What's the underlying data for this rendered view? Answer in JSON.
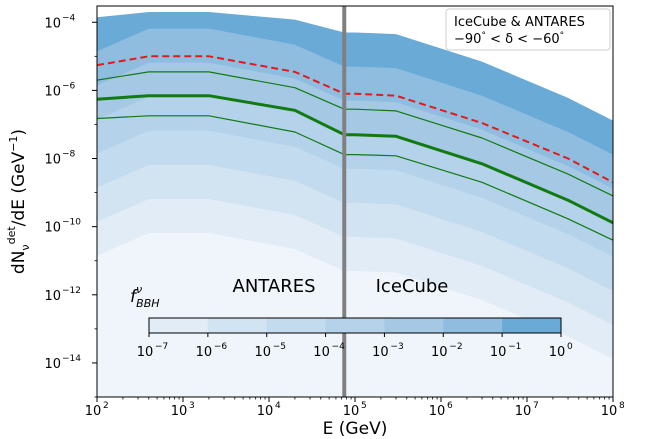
{
  "chart_data": {
    "type": "area",
    "title": "",
    "xlabel": "E (GeV)",
    "ylabel_parts": {
      "d": "dN",
      "sub": "ν",
      "sup": "det",
      "tail": "/dE (GeV",
      "tail_sup": "−1",
      "close": ")"
    },
    "x_scale": "log",
    "y_scale": "log",
    "xlim": [
      100,
      100000000
    ],
    "ylim": [
      1e-15,
      0.0003
    ],
    "x_tick_exponents": [
      2,
      3,
      4,
      5,
      6,
      7,
      8
    ],
    "y_tick_exponents": [
      -4,
      -6,
      -8,
      -10,
      -12,
      -14
    ],
    "tick_base": "10",
    "grid": false,
    "legend": {
      "position": "top-right",
      "line1": "IceCube & ANTARES",
      "line2_parts": [
        "−90",
        "°",
        " < δ < −60",
        "°"
      ]
    },
    "boundary": {
      "x": 75000,
      "color": "#808080"
    },
    "region_labels": {
      "left": "ANTARES",
      "right": "IceCube"
    },
    "colorbar": {
      "label_main": "f",
      "label_sup": "ν",
      "label_sub": "BBH",
      "tick_exponents": [
        -7,
        -6,
        -5,
        -4,
        -3,
        -2,
        -1,
        0
      ],
      "colors": [
        "#f0f5fb",
        "#e1ecf7",
        "#d2e3f2",
        "#c3dbee",
        "#b4d2ea",
        "#a5c9e5",
        "#8fbde0",
        "#6aaad7"
      ]
    },
    "bands": [
      {
        "f_bbh": "1e-7",
        "color": "#f0f5fb",
        "upper": [
          [
            100,
            1.4e-11
          ],
          [
            400,
            6.5e-11
          ],
          [
            2000,
            6.5e-11
          ],
          [
            20000,
            2.2e-11
          ],
          [
            75000,
            5e-12
          ],
          [
            100000,
            5e-12
          ],
          [
            300000,
            4.5e-12
          ],
          [
            3000000,
            7e-13
          ],
          [
            30000000,
            6e-14
          ],
          [
            100000000,
            1.3e-14
          ]
        ]
      },
      {
        "f_bbh": "1e-6",
        "color": "#e1ecf7",
        "upper": [
          [
            100,
            1.4e-10
          ],
          [
            400,
            6.5e-10
          ],
          [
            2000,
            6.5e-10
          ],
          [
            20000,
            2.2e-10
          ],
          [
            75000,
            5e-11
          ],
          [
            100000,
            5e-11
          ],
          [
            300000,
            4.5e-11
          ],
          [
            3000000,
            7e-12
          ],
          [
            30000000,
            6e-13
          ],
          [
            100000000,
            1.3e-13
          ]
        ]
      },
      {
        "f_bbh": "1e-5",
        "color": "#d2e3f2",
        "upper": [
          [
            100,
            1.4e-09
          ],
          [
            400,
            6.5e-09
          ],
          [
            2000,
            6.5e-09
          ],
          [
            20000,
            2.2e-09
          ],
          [
            75000,
            5e-10
          ],
          [
            100000,
            5e-10
          ],
          [
            300000,
            4.5e-10
          ],
          [
            3000000,
            7e-11
          ],
          [
            30000000,
            6e-12
          ],
          [
            100000000,
            1.3e-12
          ]
        ]
      },
      {
        "f_bbh": "1e-4",
        "color": "#c3dbee",
        "upper": [
          [
            100,
            1.4e-08
          ],
          [
            400,
            6.5e-08
          ],
          [
            2000,
            6.5e-08
          ],
          [
            20000,
            2.2e-08
          ],
          [
            75000,
            5e-09
          ],
          [
            100000,
            5e-09
          ],
          [
            300000,
            4.5e-09
          ],
          [
            3000000,
            7e-10
          ],
          [
            30000000,
            6e-11
          ],
          [
            100000000,
            1.3e-11
          ]
        ]
      },
      {
        "f_bbh": "1e-3",
        "color": "#b4d2ea",
        "upper": [
          [
            100,
            1.4e-07
          ],
          [
            400,
            6.5e-07
          ],
          [
            2000,
            6.5e-07
          ],
          [
            20000,
            2.2e-07
          ],
          [
            75000,
            5e-08
          ],
          [
            100000,
            5e-08
          ],
          [
            300000,
            4.5e-08
          ],
          [
            3000000,
            7e-09
          ],
          [
            30000000,
            6e-10
          ],
          [
            100000000,
            1.3e-10
          ]
        ]
      },
      {
        "f_bbh": "1e-2",
        "color": "#a5c9e5",
        "upper": [
          [
            100,
            1.4e-06
          ],
          [
            400,
            6.5e-06
          ],
          [
            2000,
            6.5e-06
          ],
          [
            20000,
            2.2e-06
          ],
          [
            75000,
            5e-07
          ],
          [
            100000,
            5e-07
          ],
          [
            300000,
            4.5e-07
          ],
          [
            3000000,
            7e-08
          ],
          [
            30000000,
            6e-09
          ],
          [
            100000000,
            1.3e-09
          ]
        ]
      },
      {
        "f_bbh": "1e-1",
        "color": "#8fbde0",
        "upper": [
          [
            100,
            1.4e-05
          ],
          [
            400,
            6.5e-05
          ],
          [
            2000,
            6.5e-05
          ],
          [
            20000,
            2.2e-05
          ],
          [
            75000,
            5e-06
          ],
          [
            100000,
            5e-06
          ],
          [
            300000,
            4.5e-06
          ],
          [
            3000000,
            7e-07
          ],
          [
            30000000,
            6e-08
          ],
          [
            100000000,
            1.3e-08
          ]
        ]
      },
      {
        "f_bbh": "1e0",
        "color": "#6aaad7",
        "upper": [
          [
            100,
            0.00014
          ],
          [
            400,
            0.0002
          ],
          [
            2000,
            0.0002
          ],
          [
            20000,
            0.00012
          ],
          [
            75000,
            5e-05
          ],
          [
            100000,
            5e-05
          ],
          [
            300000,
            4.5e-05
          ],
          [
            3000000,
            7e-06
          ],
          [
            30000000,
            6e-07
          ],
          [
            100000000,
            1.3e-07
          ]
        ]
      }
    ],
    "lines": [
      {
        "name": "",
        "style": "dashed",
        "color": "#e31a1c",
        "width": 2,
        "points": [
          [
            100,
            5.5e-06
          ],
          [
            400,
            1e-05
          ],
          [
            2000,
            1e-05
          ],
          [
            20000,
            3.5e-06
          ],
          [
            75000,
            8e-07
          ],
          [
            100000,
            8e-07
          ],
          [
            300000,
            7e-07
          ],
          [
            3000000,
            1.1e-07
          ],
          [
            30000000,
            1e-08
          ],
          [
            100000000,
            2e-09
          ]
        ]
      },
      {
        "name": "",
        "style": "solid",
        "color": "#117a11",
        "width": 1.2,
        "points": [
          [
            100,
            2e-06
          ],
          [
            400,
            3.5e-06
          ],
          [
            2000,
            3.5e-06
          ],
          [
            20000,
            1.2e-06
          ],
          [
            75000,
            2.8e-07
          ],
          [
            100000,
            2.8e-07
          ],
          [
            300000,
            2.5e-07
          ],
          [
            3000000,
            4e-08
          ],
          [
            30000000,
            3.5e-09
          ],
          [
            100000000,
            8e-10
          ]
        ]
      },
      {
        "name": "",
        "style": "solid",
        "color": "#117a11",
        "width": 3,
        "points": [
          [
            100,
            5.5e-07
          ],
          [
            400,
            7e-07
          ],
          [
            2000,
            7e-07
          ],
          [
            20000,
            2.6e-07
          ],
          [
            75000,
            5e-08
          ],
          [
            100000,
            5e-08
          ],
          [
            300000,
            4.5e-08
          ],
          [
            3000000,
            7e-09
          ],
          [
            30000000,
            6e-10
          ],
          [
            100000000,
            1.3e-10
          ]
        ]
      },
      {
        "name": "",
        "style": "solid",
        "color": "#117a11",
        "width": 1.2,
        "points": [
          [
            100,
            1.5e-07
          ],
          [
            400,
            1.8e-07
          ],
          [
            2000,
            1.8e-07
          ],
          [
            20000,
            6e-08
          ],
          [
            75000,
            1.3e-08
          ],
          [
            100000,
            1.3e-08
          ],
          [
            300000,
            1.2e-08
          ],
          [
            3000000,
            2e-09
          ],
          [
            30000000,
            1.7e-10
          ],
          [
            100000000,
            4e-11
          ]
        ]
      }
    ]
  }
}
